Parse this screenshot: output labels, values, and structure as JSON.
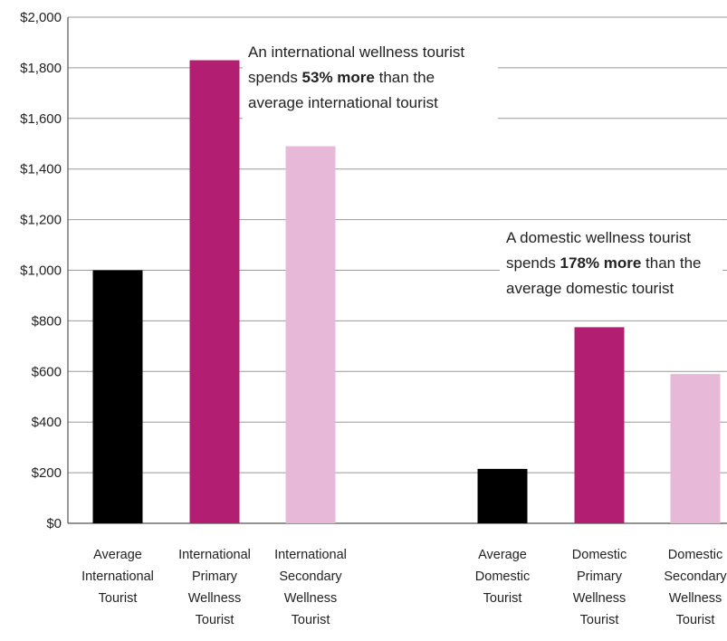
{
  "chart_data": {
    "type": "bar",
    "categories": [
      [
        "Average",
        "International",
        "Tourist"
      ],
      [
        "International",
        "Primary",
        "Wellness",
        "Tourist"
      ],
      [
        "International",
        "Secondary",
        "Wellness",
        "Tourist"
      ],
      [
        "Average",
        "Domestic",
        "Tourist"
      ],
      [
        "Domestic",
        "Primary",
        "Wellness",
        "Tourist"
      ],
      [
        "Domestic",
        "Secondary",
        "Wellness",
        "Tourist"
      ]
    ],
    "values": [
      1000,
      1830,
      1490,
      215,
      775,
      590
    ],
    "colors": [
      "#000000",
      "#b21f72",
      "#e8b8d8",
      "#000000",
      "#b21f72",
      "#e8b8d8"
    ],
    "title": "",
    "xlabel": "",
    "ylabel": "",
    "ylim": [
      0,
      2000
    ],
    "y_ticks": [
      "$0",
      "$200",
      "$400",
      "$600",
      "$800",
      "$1,000",
      "$1,200",
      "$1,400",
      "$1,600",
      "$1,800",
      "$2,000"
    ],
    "grid": true,
    "annotations": [
      {
        "lines": [
          [
            {
              "text": "An international wellness tourist",
              "bold": false
            }
          ],
          [
            {
              "text": "spends ",
              "bold": false
            },
            {
              "text": "53% more",
              "bold": true
            },
            {
              "text": " than the",
              "bold": false
            }
          ],
          [
            {
              "text": "average international tourist",
              "bold": false
            }
          ]
        ]
      },
      {
        "lines": [
          [
            {
              "text": "A domestic wellness tourist",
              "bold": false
            }
          ],
          [
            {
              "text": "spends ",
              "bold": false
            },
            {
              "text": "178% more",
              "bold": true
            },
            {
              "text": " than the",
              "bold": false
            }
          ],
          [
            {
              "text": "average domestic tourist",
              "bold": false
            }
          ]
        ]
      }
    ]
  }
}
